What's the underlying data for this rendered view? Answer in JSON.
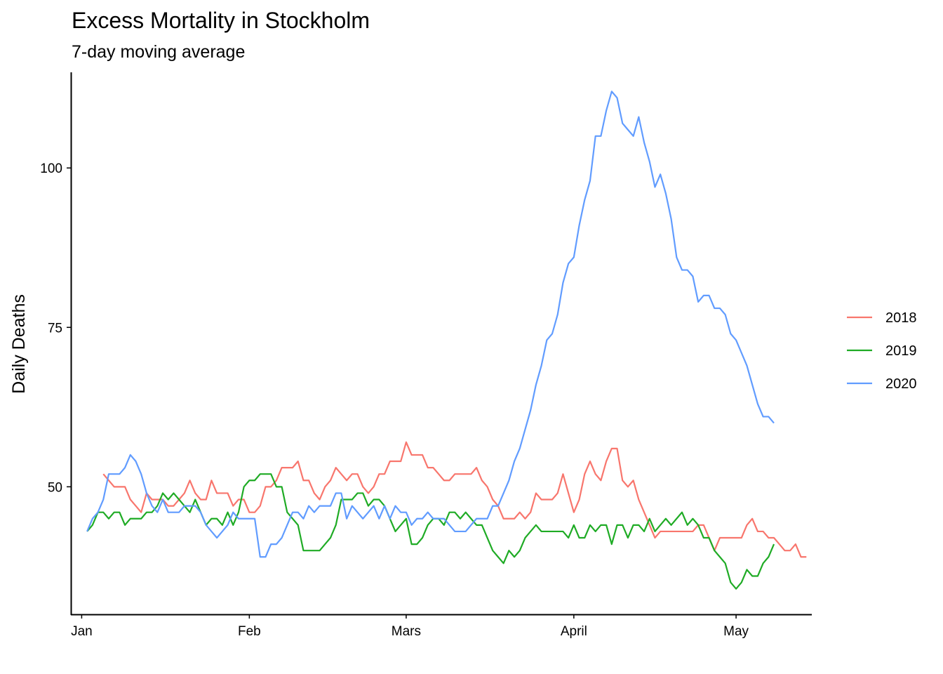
{
  "chart_data": {
    "type": "line",
    "title": "Excess Mortality in Stockholm",
    "subtitle": "7-day moving average",
    "xlabel": "",
    "ylabel": "Daily Deaths",
    "x_axis": {
      "type": "day_of_year",
      "range": [
        -1,
        136
      ],
      "ticks": [
        {
          "day": 1,
          "label": "Jan"
        },
        {
          "day": 32,
          "label": "Feb"
        },
        {
          "day": 61,
          "label": "Mars"
        },
        {
          "day": 92,
          "label": "April"
        },
        {
          "day": 122,
          "label": "May"
        }
      ]
    },
    "y_axis": {
      "range": [
        30,
        115
      ],
      "ticks": [
        50,
        75,
        100
      ]
    },
    "grid": false,
    "legend_position": "right",
    "series": [
      {
        "name": "2018",
        "color": "#F8766D",
        "start_day": 5,
        "values": [
          52,
          51,
          50,
          50,
          50,
          48,
          47,
          46,
          49,
          48,
          48,
          48,
          47,
          47,
          48,
          49,
          51,
          49,
          48,
          48,
          51,
          49,
          49,
          49,
          47,
          48,
          48,
          46,
          46,
          47,
          50,
          50,
          51,
          53,
          53,
          53,
          54,
          51,
          51,
          49,
          48,
          50,
          51,
          53,
          52,
          51,
          52,
          52,
          50,
          49,
          50,
          52,
          52,
          54,
          54,
          54,
          57,
          55,
          55,
          55,
          53,
          53,
          52,
          51,
          51,
          52,
          52,
          52,
          52,
          53,
          51,
          50,
          48,
          47,
          45,
          45,
          45,
          46,
          45,
          46,
          49,
          48,
          48,
          48,
          49,
          52,
          49,
          46,
          48,
          52,
          54,
          52,
          51,
          54,
          56,
          56,
          51,
          50,
          51,
          48,
          46,
          44,
          42,
          43,
          43,
          43,
          43,
          43,
          43,
          43,
          44,
          44,
          42,
          40,
          42,
          42,
          42,
          42,
          42,
          44,
          45,
          43,
          43,
          42,
          42,
          41,
          40,
          40,
          41,
          39,
          39
        ]
      },
      {
        "name": "2019",
        "color": "#1FAB25",
        "start_day": 2,
        "values": [
          43,
          44,
          46,
          46,
          45,
          46,
          46,
          44,
          45,
          45,
          45,
          46,
          46,
          47,
          49,
          48,
          49,
          48,
          47,
          46,
          48,
          46,
          44,
          45,
          45,
          44,
          46,
          44,
          46,
          50,
          51,
          51,
          52,
          52,
          52,
          50,
          50,
          46,
          45,
          44,
          40,
          40,
          40,
          40,
          41,
          42,
          44,
          48,
          48,
          48,
          49,
          49,
          47,
          48,
          48,
          47,
          45,
          43,
          44,
          45,
          41,
          41,
          42,
          44,
          45,
          45,
          44,
          46,
          46,
          45,
          46,
          45,
          44,
          44,
          42,
          40,
          39,
          38,
          40,
          39,
          40,
          42,
          43,
          44,
          43,
          43,
          43,
          43,
          43,
          42,
          44,
          42,
          42,
          44,
          43,
          44,
          44,
          41,
          44,
          44,
          42,
          44,
          44,
          43,
          45,
          43,
          44,
          45,
          44,
          45,
          46,
          44,
          45,
          44,
          42,
          42,
          40,
          39,
          38,
          35,
          34,
          35,
          37,
          36,
          36,
          38,
          39,
          41
        ]
      },
      {
        "name": "2020",
        "color": "#619CFF",
        "start_day": 2,
        "values": [
          43,
          45,
          46,
          48,
          52,
          52,
          52,
          53,
          55,
          54,
          52,
          49,
          47,
          46,
          48,
          46,
          46,
          46,
          47,
          47,
          47,
          46,
          44,
          43,
          42,
          43,
          44,
          46,
          45,
          45,
          45,
          45,
          39,
          39,
          41,
          41,
          42,
          44,
          46,
          46,
          45,
          47,
          46,
          47,
          47,
          47,
          49,
          49,
          45,
          47,
          46,
          45,
          46,
          47,
          45,
          47,
          45,
          47,
          46,
          46,
          44,
          45,
          45,
          46,
          45,
          45,
          45,
          44,
          43,
          43,
          43,
          44,
          45,
          45,
          45,
          47,
          47,
          49,
          51,
          54,
          56,
          59,
          62,
          66,
          69,
          73,
          74,
          77,
          82,
          85,
          86,
          91,
          95,
          98,
          105,
          105,
          109,
          112,
          111,
          107,
          106,
          105,
          108,
          104,
          101,
          97,
          99,
          96,
          92,
          86,
          84,
          84,
          83,
          79,
          80,
          80,
          78,
          78,
          77,
          74,
          73,
          71,
          69,
          66,
          63,
          61,
          61,
          60
        ]
      }
    ]
  }
}
